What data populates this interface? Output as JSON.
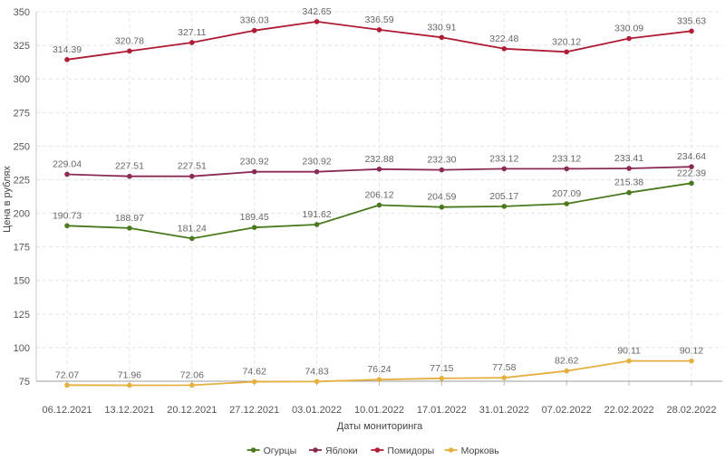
{
  "chart_data": {
    "type": "line",
    "title": "",
    "xlabel": "Даты мониторинга",
    "ylabel": "Цена в рублях",
    "ylim": [
      75,
      350
    ],
    "yticks": [
      75,
      100,
      125,
      150,
      175,
      200,
      225,
      250,
      275,
      300,
      325,
      350
    ],
    "grid": true,
    "legend_position": "bottom",
    "categories": [
      "06.12.2021",
      "13.12.2021",
      "20.12.2021",
      "27.12.2021",
      "03.01.2022",
      "10.01.2022",
      "17.01.2022",
      "31.01.2022",
      "07.02.2022",
      "22.02.2022",
      "28.02.2022"
    ],
    "series": [
      {
        "name": "Огурцы",
        "color": "#4a7a1e",
        "values": [
          190.73,
          188.97,
          181.24,
          189.45,
          191.62,
          206.12,
          204.59,
          205.17,
          207.09,
          215.38,
          222.39
        ],
        "labels": [
          "190.73",
          "188.97",
          "181.24",
          "189.45",
          "191.62",
          "206.12",
          "204.59",
          "205.17",
          "207.09",
          "215.38",
          "222.39"
        ]
      },
      {
        "name": "Яблоки",
        "color": "#8a2a55",
        "values": [
          229.04,
          227.51,
          227.51,
          230.92,
          230.92,
          232.88,
          232.3,
          233.12,
          233.12,
          233.41,
          234.64
        ],
        "labels": [
          "229.04",
          "227.51",
          "227.51",
          "230.92",
          "230.92",
          "232.88",
          "232.30",
          "233.12",
          "233.12",
          "233.41",
          "234.64"
        ]
      },
      {
        "name": "Помидоры",
        "color": "#b01c33",
        "values": [
          314.39,
          320.78,
          327.11,
          336.03,
          342.65,
          336.59,
          330.91,
          322.48,
          320.12,
          330.09,
          335.63
        ],
        "labels": [
          "314.39",
          "320.78",
          "327.11",
          "336.03",
          "342.65",
          "336.59",
          "330.91",
          "322.48",
          "320.12",
          "330.09",
          "335.63"
        ]
      },
      {
        "name": "Морковь",
        "color": "#e6b040",
        "values": [
          72.07,
          71.96,
          72.06,
          74.62,
          74.83,
          76.24,
          77.15,
          77.58,
          82.62,
          90.11,
          90.12
        ],
        "labels": [
          "72.07",
          "71.96",
          "72.06",
          "74.62",
          "74.83",
          "76.24",
          "77.15",
          "77.58",
          "82.62",
          "90.11",
          "90.12"
        ]
      }
    ]
  }
}
